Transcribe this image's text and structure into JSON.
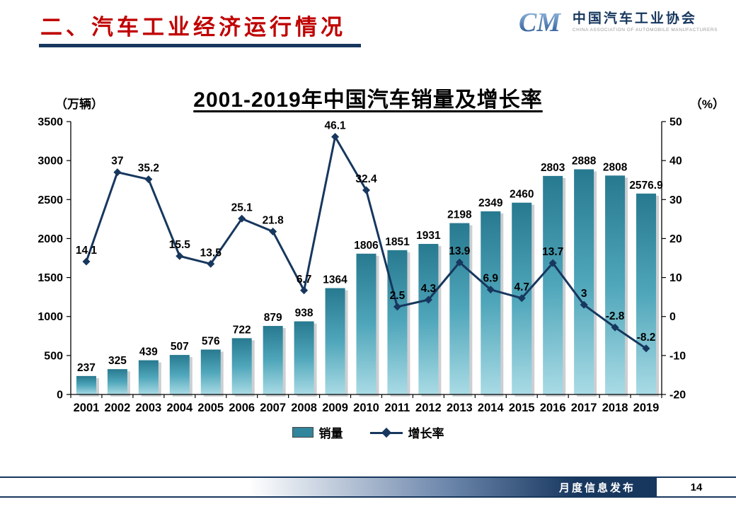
{
  "slide": {
    "header_title": "二、汽车工业经济运行情况",
    "footer_text": "月度信息发布",
    "page_number": "14"
  },
  "logo": {
    "monogram": "CM",
    "name": "中国汽车工业协会",
    "subtitle": "CHINA ASSOCIATION OF AUTOMOBILE MANUFACTURERS"
  },
  "chart_data": {
    "type": "bar+line",
    "title": "2001-2019年中国汽车销量及增长率",
    "left_axis_unit": "（万辆）",
    "right_axis_unit": "（%）",
    "categories": [
      "2001",
      "2002",
      "2003",
      "2004",
      "2005",
      "2006",
      "2007",
      "2008",
      "2009",
      "2010",
      "2011",
      "2012",
      "2013",
      "2014",
      "2015",
      "2016",
      "2017",
      "2018",
      "2019"
    ],
    "series": [
      {
        "name": "销量",
        "type": "bar",
        "axis": "left",
        "color": "#31859C",
        "values": [
          237,
          325,
          439,
          507,
          576,
          722,
          879,
          938,
          1364,
          1806,
          1851,
          1931,
          2198,
          2349,
          2460,
          2803,
          2888,
          2808,
          2576.9
        ]
      },
      {
        "name": "增长率",
        "type": "line",
        "axis": "right",
        "color": "#17375E",
        "values": [
          14.1,
          37,
          35.2,
          15.5,
          13.5,
          25.1,
          21.8,
          6.7,
          46.1,
          32.4,
          2.5,
          4.3,
          13.9,
          6.9,
          4.7,
          13.7,
          3,
          -2.8,
          -8.2
        ]
      }
    ],
    "left_axis": {
      "min": 0,
      "max": 3500,
      "step": 500
    },
    "right_axis": {
      "min": -20,
      "max": 50,
      "step": 10
    },
    "legend_position": "bottom",
    "grid": false
  }
}
